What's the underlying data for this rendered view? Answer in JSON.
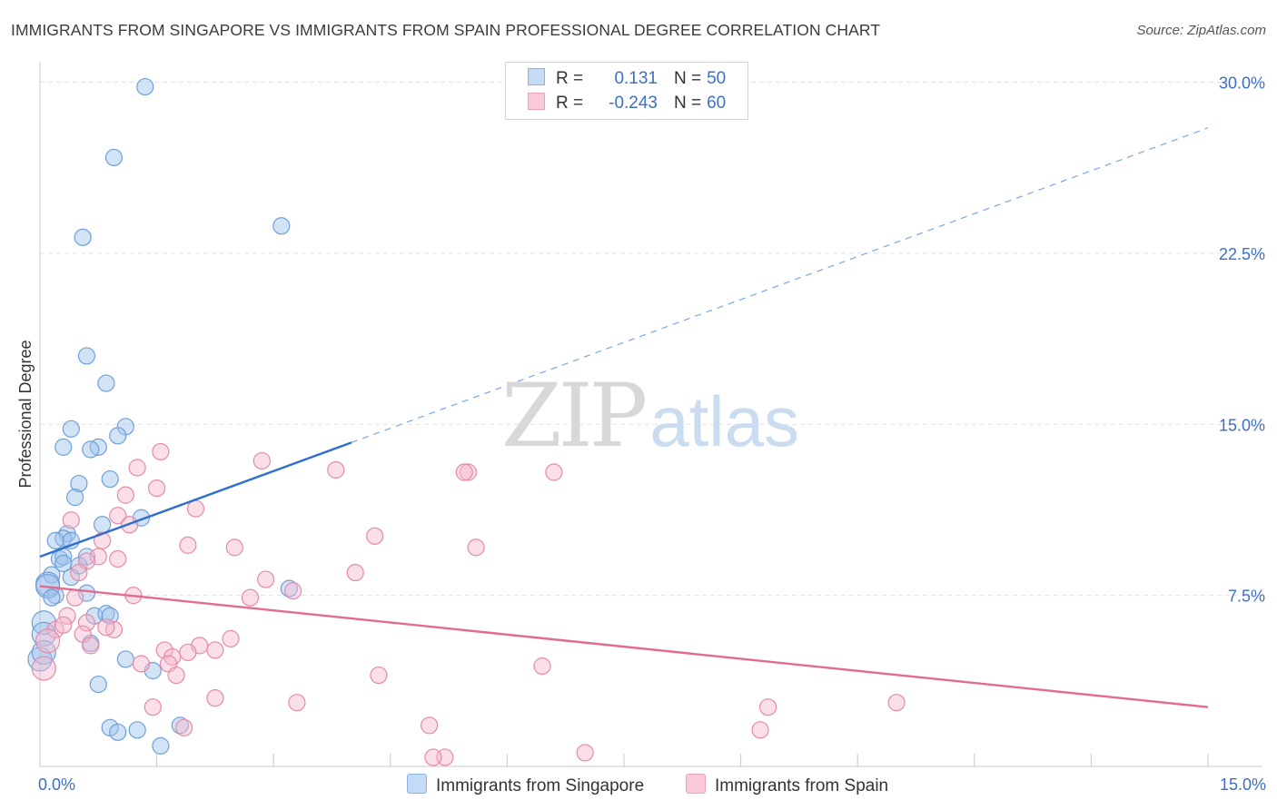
{
  "title": "IMMIGRANTS FROM SINGAPORE VS IMMIGRANTS FROM SPAIN PROFESSIONAL DEGREE CORRELATION CHART",
  "source": "Source: ZipAtlas.com",
  "watermark": {
    "zip": "ZIP",
    "atlas": "atlas"
  },
  "legend": {
    "r_label": "R =",
    "n_label": "N =",
    "series": [
      {
        "r": "0.131",
        "n": "50"
      },
      {
        "r": "-0.243",
        "n": "60"
      }
    ]
  },
  "chart_data": {
    "type": "scatter",
    "title": "IMMIGRANTS FROM SINGAPORE VS IMMIGRANTS FROM SPAIN PROFESSIONAL DEGREE CORRELATION CHART",
    "xlabel": "",
    "ylabel": "Professional Degree",
    "xlim": [
      0,
      15
    ],
    "ylim": [
      0,
      30.5
    ],
    "x_tick_labels": [
      "0.0%",
      "15.0%"
    ],
    "y_ticks": [
      7.5,
      15.0,
      22.5,
      30.0
    ],
    "y_tick_labels": [
      "7.5%",
      "15.0%",
      "22.5%",
      "30.0%"
    ],
    "grid": true,
    "series": [
      {
        "name": "Immigrants from Singapore",
        "color": "#9dc1ea",
        "edge": "#6f9fd8",
        "line_color": "#2f6fce",
        "trend": {
          "x0": 0,
          "y0": 9.2,
          "x_solid_end": 4.0,
          "y_solid_end": 14.2,
          "x1": 15,
          "y1": 28.0
        },
        "points": [
          [
            1.35,
            29.8
          ],
          [
            0.95,
            26.7
          ],
          [
            3.1,
            23.7
          ],
          [
            0.55,
            23.2
          ],
          [
            0.6,
            18.0
          ],
          [
            0.85,
            16.8
          ],
          [
            1.1,
            14.9
          ],
          [
            0.4,
            14.8
          ],
          [
            1.0,
            14.5
          ],
          [
            0.3,
            14.0
          ],
          [
            0.75,
            14.0
          ],
          [
            0.65,
            13.9
          ],
          [
            0.9,
            12.6
          ],
          [
            0.5,
            12.4
          ],
          [
            0.45,
            11.8
          ],
          [
            1.3,
            10.9
          ],
          [
            0.8,
            10.6
          ],
          [
            0.35,
            10.2
          ],
          [
            0.3,
            10.0
          ],
          [
            0.2,
            9.9
          ],
          [
            0.4,
            9.9
          ],
          [
            0.6,
            9.2
          ],
          [
            0.25,
            9.1
          ],
          [
            0.5,
            8.8
          ],
          [
            0.3,
            9.2
          ],
          [
            0.4,
            8.3
          ],
          [
            0.15,
            8.4
          ],
          [
            0.1,
            8.0
          ],
          [
            0.2,
            7.5
          ],
          [
            0.6,
            7.6
          ],
          [
            3.2,
            7.8
          ],
          [
            0.1,
            7.9
          ],
          [
            0.05,
            6.3
          ],
          [
            0.7,
            6.6
          ],
          [
            0.85,
            6.7
          ],
          [
            0.9,
            6.6
          ],
          [
            0.05,
            5.8
          ],
          [
            0.65,
            5.4
          ],
          [
            1.1,
            4.7
          ],
          [
            1.45,
            4.2
          ],
          [
            0.0,
            4.7
          ],
          [
            0.75,
            3.6
          ],
          [
            0.9,
            1.7
          ],
          [
            1.25,
            1.6
          ],
          [
            1.0,
            1.5
          ],
          [
            1.8,
            1.8
          ],
          [
            1.55,
            0.9
          ],
          [
            0.05,
            5.0
          ],
          [
            0.15,
            7.4
          ],
          [
            0.3,
            8.9
          ]
        ]
      },
      {
        "name": "Immigrants from Spain",
        "color": "#f5b8cb",
        "edge": "#e58aa8",
        "line_color": "#e26a93",
        "trend": {
          "x0": 0,
          "y0": 7.9,
          "x1": 15,
          "y1": 2.6
        },
        "points": [
          [
            1.55,
            13.8
          ],
          [
            2.85,
            13.4
          ],
          [
            1.25,
            13.1
          ],
          [
            3.8,
            13.0
          ],
          [
            5.5,
            12.9
          ],
          [
            6.6,
            12.9
          ],
          [
            5.45,
            12.9
          ],
          [
            1.5,
            12.2
          ],
          [
            1.1,
            11.9
          ],
          [
            2.0,
            11.3
          ],
          [
            1.0,
            11.0
          ],
          [
            1.15,
            10.6
          ],
          [
            0.4,
            10.8
          ],
          [
            4.3,
            10.1
          ],
          [
            0.8,
            9.9
          ],
          [
            1.9,
            9.7
          ],
          [
            2.5,
            9.6
          ],
          [
            5.6,
            9.6
          ],
          [
            0.75,
            9.2
          ],
          [
            1.0,
            9.1
          ],
          [
            0.6,
            9.0
          ],
          [
            4.05,
            8.5
          ],
          [
            2.9,
            8.2
          ],
          [
            3.25,
            7.7
          ],
          [
            1.2,
            7.5
          ],
          [
            2.7,
            7.4
          ],
          [
            0.45,
            7.4
          ],
          [
            0.35,
            6.6
          ],
          [
            0.6,
            6.3
          ],
          [
            0.95,
            6.0
          ],
          [
            0.85,
            6.1
          ],
          [
            0.2,
            6.0
          ],
          [
            0.55,
            5.8
          ],
          [
            2.45,
            5.6
          ],
          [
            2.05,
            5.3
          ],
          [
            0.65,
            5.3
          ],
          [
            1.6,
            5.1
          ],
          [
            1.9,
            5.0
          ],
          [
            2.25,
            5.1
          ],
          [
            1.7,
            4.8
          ],
          [
            1.65,
            4.5
          ],
          [
            1.3,
            4.5
          ],
          [
            6.45,
            4.4
          ],
          [
            4.35,
            4.0
          ],
          [
            1.75,
            4.0
          ],
          [
            0.05,
            4.3
          ],
          [
            2.25,
            3.0
          ],
          [
            3.3,
            2.8
          ],
          [
            1.45,
            2.6
          ],
          [
            9.35,
            2.6
          ],
          [
            11.0,
            2.8
          ],
          [
            5.0,
            1.8
          ],
          [
            1.85,
            1.7
          ],
          [
            9.25,
            1.6
          ],
          [
            7.0,
            0.6
          ],
          [
            5.2,
            0.4
          ],
          [
            5.05,
            0.4
          ],
          [
            0.1,
            5.5
          ],
          [
            0.3,
            6.2
          ],
          [
            0.5,
            8.5
          ]
        ]
      }
    ]
  }
}
